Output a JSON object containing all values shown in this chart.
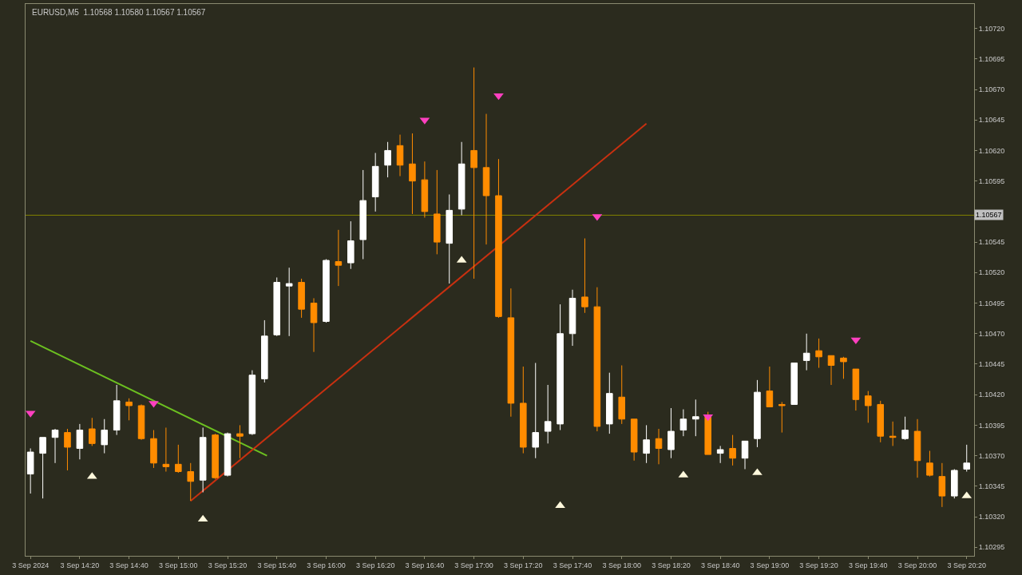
{
  "chart_data": {
    "type": "candlestick",
    "title": "EURUSD,M5  1.10568 1.10580 1.10567 1.10567",
    "x": [
      "2024-09-03T14:00",
      "2024-09-03T14:05",
      "2024-09-03T14:10",
      "2024-09-03T14:15",
      "2024-09-03T14:20",
      "2024-09-03T14:25",
      "2024-09-03T14:30",
      "2024-09-03T14:35",
      "2024-09-03T14:40",
      "2024-09-03T14:45",
      "2024-09-03T14:50",
      "2024-09-03T14:55",
      "2024-09-03T15:00",
      "2024-09-03T15:05",
      "2024-09-03T15:10",
      "2024-09-03T15:15",
      "2024-09-03T15:20",
      "2024-09-03T15:25",
      "2024-09-03T15:30",
      "2024-09-03T15:35",
      "2024-09-03T15:40",
      "2024-09-03T15:45",
      "2024-09-03T15:50",
      "2024-09-03T15:55",
      "2024-09-03T16:00",
      "2024-09-03T16:05",
      "2024-09-03T16:10",
      "2024-09-03T16:15",
      "2024-09-03T16:20",
      "2024-09-03T16:25",
      "2024-09-03T16:30",
      "2024-09-03T16:35",
      "2024-09-03T16:40",
      "2024-09-03T16:45",
      "2024-09-03T16:50",
      "2024-09-03T16:55",
      "2024-09-03T17:00",
      "2024-09-03T17:05",
      "2024-09-03T17:10",
      "2024-09-03T17:15",
      "2024-09-03T17:20",
      "2024-09-03T17:25",
      "2024-09-03T17:30",
      "2024-09-03T17:35",
      "2024-09-03T17:40",
      "2024-09-03T17:45",
      "2024-09-03T17:50",
      "2024-09-03T17:55",
      "2024-09-03T18:00",
      "2024-09-03T18:05",
      "2024-09-03T18:10",
      "2024-09-03T18:15",
      "2024-09-03T18:20",
      "2024-09-03T18:25",
      "2024-09-03T18:30",
      "2024-09-03T18:35",
      "2024-09-03T18:40",
      "2024-09-03T18:45",
      "2024-09-03T18:50",
      "2024-09-03T18:55",
      "2024-09-03T19:00",
      "2024-09-03T19:05",
      "2024-09-03T19:10",
      "2024-09-03T19:15",
      "2024-09-03T19:20",
      "2024-09-03T19:25",
      "2024-09-03T19:30",
      "2024-09-03T19:35",
      "2024-09-03T19:40",
      "2024-09-03T19:45",
      "2024-09-03T19:50",
      "2024-09-03T19:55",
      "2024-09-03T20:00",
      "2024-09-03T20:05",
      "2024-09-03T20:10",
      "2024-09-03T20:15",
      "2024-09-03T20:20"
    ],
    "ohlc": [
      [
        1.10355,
        1.10376,
        1.10339,
        1.10373
      ],
      [
        1.10372,
        1.10385,
        1.10335,
        1.10385
      ],
      [
        1.10385,
        1.10392,
        1.10364,
        1.10391
      ],
      [
        1.10389,
        1.10392,
        1.10358,
        1.10377
      ],
      [
        1.10376,
        1.10396,
        1.10367,
        1.10391
      ],
      [
        1.10392,
        1.10401,
        1.10378,
        1.1038
      ],
      [
        1.10379,
        1.104,
        1.10372,
        1.10391
      ],
      [
        1.10391,
        1.10428,
        1.10387,
        1.10415
      ],
      [
        1.10414,
        1.10417,
        1.10399,
        1.10411
      ],
      [
        1.10411,
        1.10412,
        1.10383,
        1.10384
      ],
      [
        1.10384,
        1.10391,
        1.1036,
        1.10364
      ],
      [
        1.10363,
        1.10393,
        1.10357,
        1.10361
      ],
      [
        1.10363,
        1.10379,
        1.10356,
        1.10357
      ],
      [
        1.10357,
        1.10364,
        1.10333,
        1.10349
      ],
      [
        1.1035,
        1.10393,
        1.1034,
        1.10385
      ],
      [
        1.10387,
        1.10388,
        1.10351,
        1.10352
      ],
      [
        1.10354,
        1.10389,
        1.10353,
        1.10388
      ],
      [
        1.10388,
        1.10395,
        1.10368,
        1.10386
      ],
      [
        1.10388,
        1.1044,
        1.10387,
        1.10436
      ],
      [
        1.10433,
        1.10481,
        1.1043,
        1.10468
      ],
      [
        1.10469,
        1.10516,
        1.10468,
        1.10512
      ],
      [
        1.10509,
        1.10524,
        1.10468,
        1.10511
      ],
      [
        1.10512,
        1.10515,
        1.10483,
        1.1049
      ],
      [
        1.10495,
        1.10499,
        1.10455,
        1.10479
      ],
      [
        1.1048,
        1.10531,
        1.10479,
        1.1053
      ],
      [
        1.10529,
        1.10555,
        1.10509,
        1.10526
      ],
      [
        1.10528,
        1.10562,
        1.10523,
        1.10546
      ],
      [
        1.10547,
        1.10604,
        1.10531,
        1.10579
      ],
      [
        1.10582,
        1.10618,
        1.1057,
        1.10607
      ],
      [
        1.10608,
        1.10627,
        1.10598,
        1.1062
      ],
      [
        1.10624,
        1.10633,
        1.10599,
        1.10608
      ],
      [
        1.10609,
        1.10634,
        1.10568,
        1.10595
      ],
      [
        1.10596,
        1.10611,
        1.10565,
        1.1057
      ],
      [
        1.10568,
        1.10604,
        1.10535,
        1.10545
      ],
      [
        1.10544,
        1.10584,
        1.10511,
        1.10571
      ],
      [
        1.10572,
        1.10627,
        1.10567,
        1.10609
      ],
      [
        1.1062,
        1.10688,
        1.10515,
        1.10606
      ],
      [
        1.10606,
        1.1065,
        1.10543,
        1.10583
      ],
      [
        1.10583,
        1.10613,
        1.10483,
        1.10484
      ],
      [
        1.10483,
        1.10507,
        1.10402,
        1.10413
      ],
      [
        1.10413,
        1.10443,
        1.10372,
        1.10377
      ],
      [
        1.10377,
        1.10446,
        1.10368,
        1.10389
      ],
      [
        1.1039,
        1.10428,
        1.1038,
        1.10398
      ],
      [
        1.10396,
        1.10494,
        1.10391,
        1.1047
      ],
      [
        1.1047,
        1.10506,
        1.1046,
        1.10499
      ],
      [
        1.105,
        1.10548,
        1.10487,
        1.10492
      ],
      [
        1.10492,
        1.10508,
        1.1039,
        1.10394
      ],
      [
        1.10396,
        1.10438,
        1.10388,
        1.10421
      ],
      [
        1.10418,
        1.10444,
        1.10396,
        1.104
      ],
      [
        1.104,
        1.104,
        1.10366,
        1.10373
      ],
      [
        1.10372,
        1.10395,
        1.10364,
        1.10383
      ],
      [
        1.10384,
        1.10392,
        1.10363,
        1.10376
      ],
      [
        1.10375,
        1.10409,
        1.10368,
        1.1039
      ],
      [
        1.10391,
        1.10408,
        1.10386,
        1.104
      ],
      [
        1.104,
        1.10416,
        1.10386,
        1.10402
      ],
      [
        1.10403,
        1.10406,
        1.10371,
        1.10371
      ],
      [
        1.10372,
        1.10378,
        1.10364,
        1.10375
      ],
      [
        1.10376,
        1.10387,
        1.10362,
        1.10368
      ],
      [
        1.10368,
        1.10382,
        1.10359,
        1.10382
      ],
      [
        1.10384,
        1.10432,
        1.10377,
        1.10422
      ],
      [
        1.10423,
        1.10443,
        1.1041,
        1.1041
      ],
      [
        1.10412,
        1.10414,
        1.10389,
        1.10411
      ],
      [
        1.10412,
        1.10446,
        1.10412,
        1.10446
      ],
      [
        1.10448,
        1.1047,
        1.1044,
        1.10454
      ],
      [
        1.10456,
        1.10466,
        1.10442,
        1.10451
      ],
      [
        1.10452,
        1.10452,
        1.10428,
        1.10444
      ],
      [
        1.1045,
        1.10451,
        1.10433,
        1.10447
      ],
      [
        1.10441,
        1.10441,
        1.10407,
        1.10416
      ],
      [
        1.10419,
        1.10423,
        1.10397,
        1.10411
      ],
      [
        1.10412,
        1.10415,
        1.10381,
        1.10386
      ],
      [
        1.10386,
        1.10398,
        1.10378,
        1.10385
      ],
      [
        1.10384,
        1.10402,
        1.10383,
        1.10391
      ],
      [
        1.1039,
        1.104,
        1.10352,
        1.10366
      ],
      [
        1.10364,
        1.10374,
        1.10353,
        1.10354
      ],
      [
        1.10353,
        1.10364,
        1.10328,
        1.10337
      ],
      [
        1.10337,
        1.10359,
        1.10335,
        1.10358
      ],
      [
        1.10359,
        1.10379,
        1.10357,
        1.10364
      ]
    ],
    "colors": [
      "#ffffff",
      "#ffffff",
      "#ffffff",
      "#ff8c00",
      "#ffffff",
      "#ff8c00",
      "#ffffff",
      "#ffffff",
      "#ff8c00",
      "#ff8c00",
      "#ff8c00",
      "#ff8c00",
      "#ff8c00",
      "#ff8c00",
      "#ffffff",
      "#ff8c00",
      "#ffffff",
      "#ff8c00",
      "#ffffff",
      "#ffffff",
      "#ffffff",
      "#ffffff",
      "#ff8c00",
      "#ff8c00",
      "#ffffff",
      "#ff8c00",
      "#ffffff",
      "#ffffff",
      "#ffffff",
      "#ffffff",
      "#ff8c00",
      "#ff8c00",
      "#ff8c00",
      "#ff8c00",
      "#ffffff",
      "#ffffff",
      "#ff8c00",
      "#ff8c00",
      "#ff8c00",
      "#ff8c00",
      "#ff8c00",
      "#ffffff",
      "#ffffff",
      "#ffffff",
      "#ffffff",
      "#ff8c00",
      "#ff8c00",
      "#ffffff",
      "#ff8c00",
      "#ff8c00",
      "#ffffff",
      "#ff8c00",
      "#ffffff",
      "#ffffff",
      "#ffffff",
      "#ff8c00",
      "#ffffff",
      "#ff8c00",
      "#ffffff",
      "#ffffff",
      "#ff8c00",
      "#ff8c00",
      "#ffffff",
      "#ffffff",
      "#ff8c00",
      "#ff8c00",
      "#ff8c00",
      "#ff8c00",
      "#ff8c00",
      "#ff8c00",
      "#ff8c00",
      "#ffffff",
      "#ff8c00",
      "#ff8c00",
      "#ff8c00",
      "#ffffff",
      "#ffffff"
    ],
    "series": [
      {
        "type": "line",
        "color": "#6cc020",
        "x": [
          "2024-09-03T14:00",
          "2024-09-03T15:36"
        ],
        "values": [
          1.10464,
          1.1037
        ]
      },
      {
        "type": "line",
        "color": "#c83010",
        "x": [
          "2024-09-03T15:05",
          "2024-09-03T18:10"
        ],
        "values": [
          1.10333,
          1.10642
        ]
      },
      {
        "type": "scatter",
        "marker": "triangle",
        "color": "#fff8dc",
        "x": [
          "2024-09-03T14:25",
          "2024-09-03T15:10",
          "2024-09-03T16:55",
          "2024-09-03T17:35",
          "2024-09-03T18:25",
          "2024-09-03T18:55",
          "2024-09-03T20:20"
        ],
        "values": [
          1.10353,
          1.10318,
          1.1053,
          1.10329,
          1.10354,
          1.10356,
          1.10337
        ]
      },
      {
        "type": "scatter",
        "marker": "triangle-down",
        "color": "#ff40c0",
        "x": [
          "2024-09-03T14:00",
          "2024-09-03T14:50",
          "2024-09-03T16:40",
          "2024-09-03T17:10",
          "2024-09-03T17:50",
          "2024-09-03T18:35",
          "2024-09-03T19:35"
        ],
        "values": [
          1.10405,
          1.10413,
          1.10645,
          1.10665,
          1.10566,
          1.10402,
          1.10465
        ]
      }
    ],
    "ref_lines": [
      {
        "axis": "y",
        "value": 1.10567,
        "label": "1.10567",
        "color": "#808000"
      }
    ],
    "xlim": [
      "2024-09-03T13:58",
      "2024-09-03T20:23"
    ],
    "xticks": [
      {
        "value": "2024-09-03T14:00",
        "label": "3 Sep 2024"
      },
      {
        "value": "2024-09-03T14:20",
        "label": "3 Sep 14:20"
      },
      {
        "value": "2024-09-03T14:40",
        "label": "3 Sep 14:40"
      },
      {
        "value": "2024-09-03T15:00",
        "label": "3 Sep 15:00"
      },
      {
        "value": "2024-09-03T15:20",
        "label": "3 Sep 15:20"
      },
      {
        "value": "2024-09-03T15:40",
        "label": "3 Sep 15:40"
      },
      {
        "value": "2024-09-03T16:00",
        "label": "3 Sep 16:00"
      },
      {
        "value": "2024-09-03T16:20",
        "label": "3 Sep 16:20"
      },
      {
        "value": "2024-09-03T16:40",
        "label": "3 Sep 16:40"
      },
      {
        "value": "2024-09-03T17:00",
        "label": "3 Sep 17:00"
      },
      {
        "value": "2024-09-03T17:20",
        "label": "3 Sep 17:20"
      },
      {
        "value": "2024-09-03T17:40",
        "label": "3 Sep 17:40"
      },
      {
        "value": "2024-09-03T18:00",
        "label": "3 Sep 18:00"
      },
      {
        "value": "2024-09-03T18:20",
        "label": "3 Sep 18:20"
      },
      {
        "value": "2024-09-03T18:40",
        "label": "3 Sep 18:40"
      },
      {
        "value": "2024-09-03T19:00",
        "label": "3 Sep 19:00"
      },
      {
        "value": "2024-09-03T19:20",
        "label": "3 Sep 19:20"
      },
      {
        "value": "2024-09-03T19:40",
        "label": "3 Sep 19:40"
      },
      {
        "value": "2024-09-03T20:00",
        "label": "3 Sep 20:00"
      },
      {
        "value": "2024-09-03T20:20",
        "label": "3 Sep 20:20"
      }
    ],
    "ylim": [
      1.10288,
      1.1074
    ],
    "yticks": [
      1.10295,
      {
        "value": 1.1032,
        "label": "1.10320"
      },
      1.10345,
      {
        "value": 1.1037,
        "label": "1.10370"
      },
      1.10395,
      {
        "value": 1.1042,
        "label": "1.10420"
      },
      1.10445,
      {
        "value": 1.1047,
        "label": "1.10470"
      },
      1.10495,
      {
        "value": 1.1052,
        "label": "1.10520"
      },
      1.10545,
      1.10595,
      {
        "value": 1.1062,
        "label": "1.10620"
      },
      1.10645,
      {
        "value": 1.1067,
        "label": "1.10670"
      },
      1.10695,
      {
        "value": 1.1072,
        "label": "1.10720"
      }
    ],
    "grid": false
  }
}
